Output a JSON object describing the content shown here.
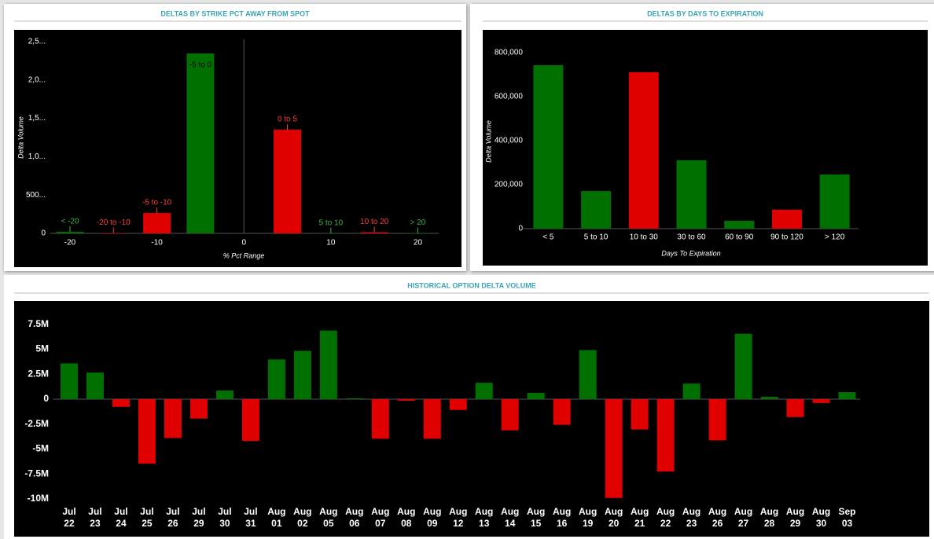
{
  "chart_data": [
    {
      "type": "bar",
      "title": "DELTAS BY STRIKE PCT AWAY FROM SPOT",
      "x_label": "% Pct Range",
      "y_label": "Delta Volume",
      "x": [
        -20,
        -15,
        -10,
        -5,
        5,
        10,
        15,
        20
      ],
      "labels": [
        "< -20",
        "-20 to -10",
        "-5 to -10",
        "-5 to 0",
        "0 to 5",
        "5 to 10",
        "10 to 20",
        "> 20"
      ],
      "values": [
        20000,
        5000,
        266000,
        2346000,
        1352000,
        3000,
        15000,
        5000
      ],
      "colors": [
        "#007000",
        "#e00000",
        "#e00000",
        "#007000",
        "#e00000",
        "#007000",
        "#e00000",
        "#007000"
      ],
      "label_colors": [
        "#3fb04a",
        "#ff3b3b",
        "#ff3b3b",
        "#000000",
        "#ff3b3b",
        "#3fb04a",
        "#ff3b3b",
        "#3fb04a"
      ],
      "xlim": [
        -21.9,
        22.4
      ],
      "xticks": [
        -20,
        -10,
        0,
        10,
        20
      ],
      "ylim": [
        0,
        2500000
      ],
      "yticks": [
        0,
        {
          "value": 500000,
          "label": "500..."
        },
        {
          "value": 1000000,
          "label": "1,0..."
        },
        {
          "value": 1500000,
          "label": "1,5..."
        },
        {
          "value": 2000000,
          "label": "2,0..."
        },
        {
          "value": 2500000,
          "label": "2,5..."
        }
      ]
    },
    {
      "type": "bar",
      "title": "DELTAS BY DAYS TO EXPIRATION",
      "x_label": "Days To Expiration",
      "y_label": "Delta Volume",
      "categories": [
        "< 5",
        "5 to 10",
        "10 to 30",
        "30 to 60",
        "60 to 90",
        "90 to 120",
        "> 120"
      ],
      "values": [
        743000,
        171000,
        711000,
        311000,
        36000,
        86000,
        246000
      ],
      "colors": [
        "#007000",
        "#007000",
        "#e00000",
        "#007000",
        "#007000",
        "#e00000",
        "#007000"
      ],
      "ylim": [
        0,
        800000
      ],
      "yticks": [
        0,
        {
          "value": 200000,
          "label": "200,000"
        },
        {
          "value": 400000,
          "label": "400,000"
        },
        {
          "value": 600000,
          "label": "600,000"
        },
        {
          "value": 800000,
          "label": "800,000"
        }
      ]
    },
    {
      "type": "bar",
      "title": "HISTORICAL OPTION DELTA VOLUME",
      "categories": [
        "Jul 22",
        "Jul 23",
        "Jul 24",
        "Jul 25",
        "Jul 26",
        "Jul 29",
        "Jul 30",
        "Jul 31",
        "Aug 01",
        "Aug 02",
        "Aug 05",
        "Aug 06",
        "Aug 07",
        "Aug 08",
        "Aug 09",
        "Aug 12",
        "Aug 13",
        "Aug 14",
        "Aug 15",
        "Aug 16",
        "Aug 19",
        "Aug 20",
        "Aug 21",
        "Aug 22",
        "Aug 23",
        "Aug 26",
        "Aug 27",
        "Aug 28",
        "Aug 29",
        "Aug 30",
        "Sep 03"
      ],
      "values": [
        3590000,
        2660000,
        -780000,
        -6480000,
        -3900000,
        -1950000,
        860000,
        -4200000,
        3980000,
        4840000,
        6880000,
        80000,
        -3980000,
        -160000,
        -3980000,
        -1090000,
        1640000,
        -3130000,
        630000,
        -2580000,
        4920000,
        -9920000,
        -3050000,
        -7270000,
        1560000,
        -4140000,
        6560000,
        230000,
        -1800000,
        -390000,
        700000
      ],
      "color": "#007000",
      "negative_color": "#e00000",
      "ylim": [
        -13800000,
        9850000
      ],
      "yticks": [
        {
          "value": -10000000,
          "label": "-10M"
        },
        {
          "value": -7500000,
          "label": "-7.5M"
        },
        {
          "value": -5000000,
          "label": "-5M"
        },
        {
          "value": -2500000,
          "label": "-2.5M"
        },
        0,
        {
          "value": 2500000,
          "label": "2.5M"
        },
        {
          "value": 5000000,
          "label": "5M"
        },
        {
          "value": 7500000,
          "label": "7.5M"
        }
      ]
    }
  ]
}
